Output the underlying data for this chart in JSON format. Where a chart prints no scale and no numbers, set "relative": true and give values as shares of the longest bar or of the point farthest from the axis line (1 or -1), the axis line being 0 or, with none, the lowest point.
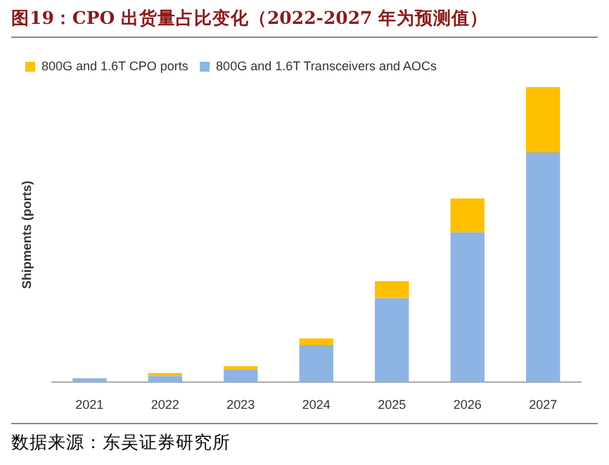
{
  "chart_data": {
    "type": "bar",
    "title": "图19：CPO 出货量占比变化（2022-2027 年为预测值）",
    "ylabel": "Shipments (ports)",
    "categories": [
      "2021",
      "2022",
      "2023",
      "2024",
      "2025",
      "2026",
      "2027"
    ],
    "stacked": true,
    "relative": true,
    "legend": "top left",
    "grid": false,
    "series": [
      {
        "name": "800G and 1.6T Transceivers and AOCs",
        "color": "#8db4e2",
        "values": [
          0.014,
          0.022,
          0.043,
          0.127,
          0.285,
          0.508,
          0.779
        ]
      },
      {
        "name": "800G and 1.6T CPO ports",
        "color": "#ffc000",
        "values": [
          0,
          0.01,
          0.012,
          0.022,
          0.058,
          0.115,
          0.221
        ]
      }
    ],
    "annotations": [
      "数据来源：东吴证券研究所"
    ]
  }
}
